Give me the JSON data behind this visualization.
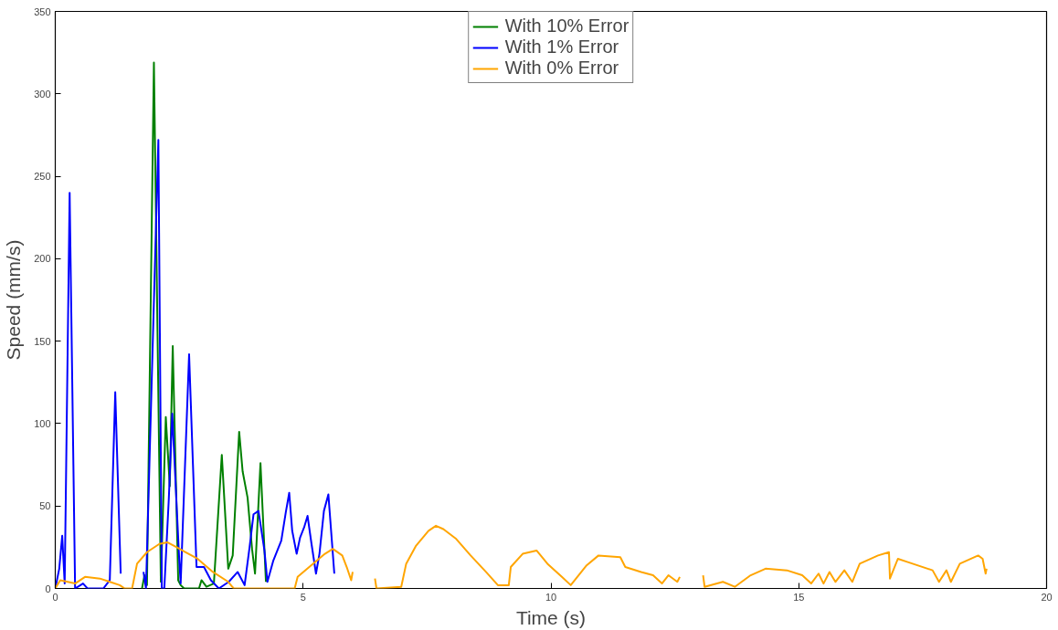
{
  "chart_data": {
    "type": "line",
    "xlabel": "Time (s)",
    "ylabel": "Speed (mm/s)",
    "xlim": [
      0,
      20
    ],
    "ylim": [
      0,
      350
    ],
    "xticks": [
      0,
      5,
      10,
      15,
      20
    ],
    "yticks": [
      0,
      50,
      100,
      150,
      200,
      250,
      300,
      350
    ],
    "grid": false,
    "legend": "top",
    "line_style": "solid",
    "marker": "none",
    "series": [
      {
        "name": "With 10% Error",
        "color": "#008000",
        "x": [
          1.75,
          1.8,
          1.85,
          1.99,
          2.13,
          2.23,
          2.31,
          2.37,
          2.48,
          2.53,
          2.6,
          2.9,
          2.95,
          3.05,
          3.2,
          3.36,
          3.49,
          3.58,
          3.71,
          3.78,
          3.88,
          3.97,
          4.03,
          4.14,
          4.25
        ],
        "values": [
          0,
          8,
          2,
          319,
          4,
          104,
          62,
          147,
          5,
          2,
          0,
          0,
          5,
          1,
          3,
          81,
          12,
          20,
          95,
          71,
          55,
          24,
          9,
          76,
          4
        ]
      },
      {
        "name": "With 1% Error",
        "color": "#0000ff",
        "x": [
          0,
          0.08,
          0.14,
          0.19,
          0.29,
          0.4,
          0.56,
          0.65,
          0.97,
          1.1,
          1.21,
          1.32,
          1.5,
          1.78,
          1.83,
          2.08,
          2.15,
          2.2,
          2.29,
          2.36,
          2.5,
          2.53,
          2.7,
          2.85,
          3.0,
          3.14,
          3.3,
          3.5,
          3.68,
          3.82,
          3.92,
          4.0,
          4.1,
          4.22,
          4.28,
          4.4,
          4.56,
          4.65,
          4.72,
          4.78,
          4.87,
          4.94,
          5.02,
          5.09,
          5.17,
          5.26,
          5.33,
          5.42,
          5.51,
          5.63
        ],
        "values": [
          0,
          12,
          32,
          3,
          240,
          0,
          3,
          0,
          0,
          5,
          119,
          9,
          null,
          10,
          0,
          272,
          0,
          0,
          54,
          106,
          18,
          3,
          142,
          13,
          13,
          5,
          0,
          4,
          10,
          2,
          25,
          45,
          47,
          23,
          4,
          17,
          29,
          46,
          58,
          35,
          21,
          31,
          37,
          44,
          27,
          9,
          21,
          47,
          57,
          9
        ]
      },
      {
        "name": "With 0% Error",
        "color": "#ffa500",
        "x": [
          0,
          0.1,
          0.25,
          0.4,
          0.6,
          0.9,
          1.1,
          1.3,
          1.4,
          1.55,
          1.65,
          1.85,
          2.1,
          2.26,
          2.45,
          2.63,
          2.87,
          3.18,
          3.49,
          3.6,
          4.28,
          4.83,
          4.89,
          5.2,
          5.44,
          5.6,
          5.79,
          5.88,
          5.97,
          6.0,
          6.2,
          6.45,
          6.48,
          6.98,
          7.08,
          7.28,
          7.53,
          7.68,
          7.83,
          8.09,
          8.38,
          8.69,
          8.93,
          9.15,
          9.19,
          9.43,
          9.71,
          9.93,
          10.22,
          10.4,
          10.72,
          10.96,
          11.4,
          11.5,
          11.82,
          12.06,
          12.24,
          12.37,
          12.55,
          12.6,
          12.8,
          13.07,
          13.1,
          13.47,
          13.71,
          14.03,
          14.33,
          14.76,
          15.07,
          15.25,
          15.4,
          15.5,
          15.62,
          15.74,
          15.92,
          16.08,
          16.23,
          16.6,
          16.82,
          16.84,
          17.0,
          17.2,
          17.7,
          17.83,
          17.98,
          18.07,
          18.25,
          18.62,
          18.71,
          18.77,
          18.79
        ],
        "values": [
          0,
          5,
          4,
          3,
          7,
          6,
          4,
          2,
          0,
          0,
          15,
          22,
          27,
          28,
          25,
          22,
          18,
          10,
          4,
          0,
          0,
          0,
          7,
          15,
          21,
          24,
          20,
          13,
          5,
          10,
          null,
          6,
          0,
          1,
          15,
          26,
          35,
          38,
          36,
          30,
          20,
          10,
          2,
          2,
          13,
          21,
          23,
          15,
          7,
          2,
          14,
          20,
          19,
          13,
          10,
          8,
          3,
          8,
          4,
          7,
          null,
          8,
          1,
          4,
          1,
          8,
          12,
          11,
          8,
          3,
          9,
          3,
          10,
          4,
          11,
          4,
          15,
          20,
          22,
          6,
          18,
          16,
          11,
          4,
          11,
          4,
          15,
          20,
          18,
          9,
          12
        ]
      }
    ]
  }
}
